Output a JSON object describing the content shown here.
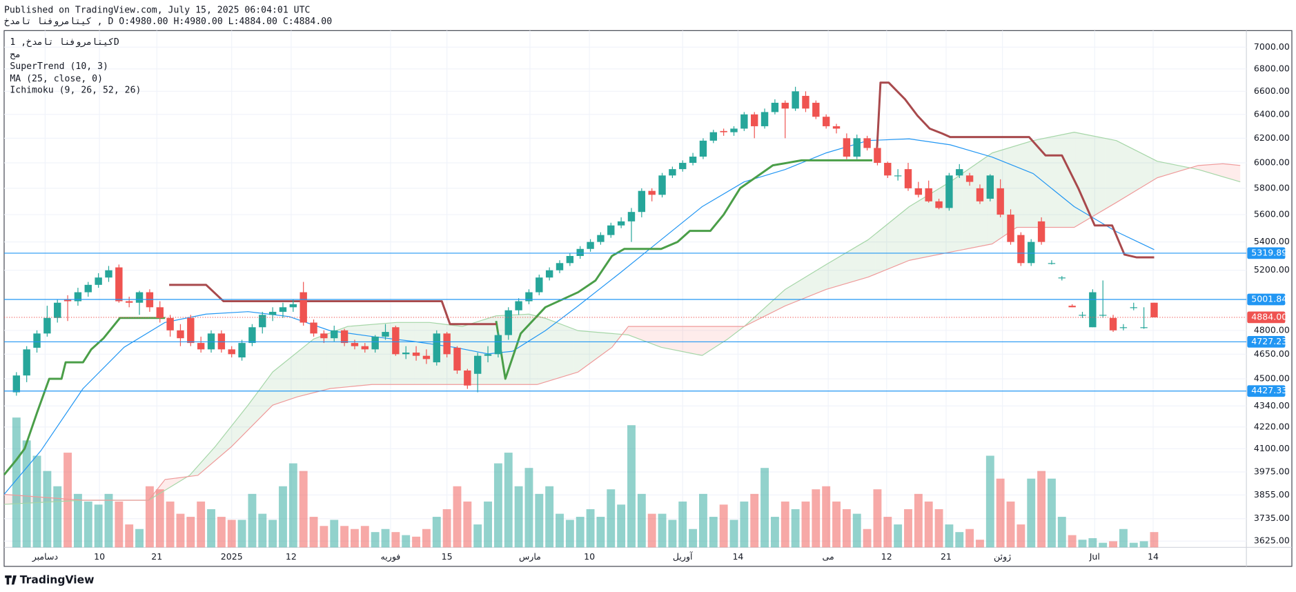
{
  "header": {
    "published": "Published on TradingView.com, July 15, 2025 06:04:01 UTC",
    "symbol_line": "کیتامروفنا تامدخ , D O:4980.00 H:4980.00 L:4884.00 C:4884.00"
  },
  "legend": {
    "symbol": "کیتامروفنا تامدخ, 1D",
    "exchange": "مح"
  },
  "footer": {
    "brand": "TradingView"
  },
  "chart_data": {
    "type": "candlestick",
    "log_scale": true,
    "grid": true,
    "colors": {
      "up": "#26a69a",
      "down": "#ef5350"
    },
    "xlim": [
      -1.2,
      120
    ],
    "ylim": [
      3595,
      7156
    ],
    "xticks": [
      {
        "value": 2.8,
        "label": "دسامبر"
      },
      {
        "value": 8.1,
        "label": "10"
      },
      {
        "value": 13.7,
        "label": "21"
      },
      {
        "value": 21,
        "label": "2025"
      },
      {
        "value": 26.8,
        "label": "12"
      },
      {
        "value": 36.5,
        "label": "فوریه"
      },
      {
        "value": 42,
        "label": "15"
      },
      {
        "value": 50.1,
        "label": "مارس"
      },
      {
        "value": 55.9,
        "label": "10"
      },
      {
        "value": 65,
        "label": "آوریل"
      },
      {
        "value": 70.4,
        "label": "14"
      },
      {
        "value": 79.2,
        "label": "می"
      },
      {
        "value": 84.9,
        "label": "12"
      },
      {
        "value": 90.7,
        "label": "21"
      },
      {
        "value": 96.2,
        "label": "ژوئن"
      },
      {
        "value": 105.2,
        "label": "Jul"
      },
      {
        "value": 110.9,
        "label": "14"
      }
    ],
    "yticks": [
      {
        "value": 3625,
        "label": "3625.00"
      },
      {
        "value": 3735,
        "label": "3735.00"
      },
      {
        "value": 3855,
        "label": "3855.00"
      },
      {
        "value": 3975,
        "label": "3975.00"
      },
      {
        "value": 4100,
        "label": "4100.00"
      },
      {
        "value": 4220,
        "label": "4220.00"
      },
      {
        "value": 4340,
        "label": "4340.00"
      },
      {
        "value": 4500,
        "label": "4500.00"
      },
      {
        "value": 4650,
        "label": "4650.00"
      },
      {
        "value": 4800,
        "label": "4800.00"
      },
      {
        "value": 5200,
        "label": "5200.00"
      },
      {
        "value": 5400,
        "label": "5400.00"
      },
      {
        "value": 5600,
        "label": "5600.00"
      },
      {
        "value": 5800,
        "label": "5800.00"
      },
      {
        "value": 6000,
        "label": "6000.00"
      },
      {
        "value": 6200,
        "label": "6200.00"
      },
      {
        "value": 6400,
        "label": "6400.00"
      },
      {
        "value": 6600,
        "label": "6600.00"
      },
      {
        "value": 6800,
        "label": "6800.00"
      },
      {
        "value": 7000,
        "label": "7000.00"
      }
    ],
    "open": [
      4420,
      4520,
      4690,
      4780,
      4880,
      5000,
      4990,
      5050,
      5100,
      5150,
      5220,
      4990,
      4980,
      5050,
      4950,
      4880,
      4800,
      4880,
      4720,
      4680,
      4780,
      4680,
      4630,
      4720,
      4820,
      4900,
      4920,
      4950,
      5050,
      4850,
      4780,
      4750,
      4800,
      4720,
      4700,
      4680,
      4760,
      4820,
      4650,
      4660,
      4640,
      4600,
      4780,
      4690,
      4550,
      4530,
      4640,
      4650,
      4770,
      4930,
      4990,
      5050,
      5150,
      5200,
      5250,
      5300,
      5350,
      5400,
      5450,
      5520,
      5550,
      5620,
      5780,
      5750,
      5900,
      5950,
      6000,
      6050,
      6180,
      6260,
      6250,
      6280,
      6400,
      6300,
      6420,
      6500,
      6450,
      6560,
      6500,
      6380,
      6300,
      6200,
      6050,
      6200,
      6120,
      6000,
      5900,
      5950,
      5800,
      5800,
      5700,
      5650,
      5900,
      5900,
      5800,
      5720,
      5800,
      5600,
      5450,
      5250,
      5550,
      5250,
      5150,
      4960,
      4900,
      4820,
      4900,
      4880,
      4820,
      4950,
      4820,
      4980
    ],
    "high": [
      4540,
      4700,
      4800,
      4960,
      5000,
      5030,
      5080,
      5120,
      5180,
      5230,
      5240,
      5020,
      5060,
      5070,
      4990,
      4900,
      4840,
      4900,
      4760,
      4800,
      4800,
      4700,
      4740,
      4840,
      4920,
      4950,
      4980,
      5000,
      5120,
      4870,
      4800,
      4830,
      4810,
      4740,
      4720,
      4770,
      4840,
      4830,
      4700,
      4700,
      4680,
      4800,
      4790,
      4700,
      4560,
      4660,
      4700,
      4790,
      4950,
      5010,
      5070,
      5170,
      5220,
      5270,
      5320,
      5370,
      5420,
      5470,
      5540,
      5580,
      5650,
      5800,
      5800,
      5920,
      5970,
      6020,
      6080,
      6200,
      6270,
      6280,
      6300,
      6420,
      6420,
      6450,
      6530,
      6520,
      6640,
      6600,
      6520,
      6400,
      6320,
      6240,
      6230,
      6220,
      6130,
      6010,
      5950,
      6000,
      5850,
      5860,
      5720,
      5920,
      5990,
      5920,
      5830,
      5910,
      5870,
      5640,
      5470,
      5420,
      5580,
      5270,
      5160,
      4970,
      4920,
      5070,
      5130,
      4900,
      4840,
      4980,
      4950,
      4980
    ],
    "low": [
      4400,
      4480,
      4660,
      4760,
      4850,
      4860,
      4960,
      5020,
      5080,
      5120,
      4980,
      4950,
      4900,
      4920,
      4850,
      4760,
      4700,
      4700,
      4660,
      4660,
      4660,
      4630,
      4610,
      4700,
      4780,
      4860,
      4880,
      4920,
      4830,
      4760,
      4720,
      4730,
      4700,
      4680,
      4660,
      4660,
      4740,
      4640,
      4620,
      4610,
      4590,
      4580,
      4630,
      4530,
      4440,
      4420,
      4600,
      4630,
      4740,
      4900,
      4970,
      5030,
      5130,
      5180,
      5230,
      5280,
      5330,
      5380,
      5430,
      5500,
      5400,
      5580,
      5700,
      5730,
      5880,
      5930,
      5980,
      6030,
      6160,
      6220,
      6220,
      6260,
      6200,
      6280,
      6400,
      6200,
      6430,
      6420,
      6360,
      6280,
      6240,
      6030,
      6030,
      6100,
      5980,
      5880,
      5860,
      5780,
      5730,
      5690,
      5640,
      5630,
      5880,
      5820,
      5680,
      5700,
      5580,
      5380,
      5230,
      5230,
      5380,
      5240,
      5130,
      4950,
      4880,
      4820,
      4880,
      4790,
      4800,
      4930,
      4810,
      4884
    ],
    "close": [
      4520,
      4680,
      4780,
      4880,
      4980,
      4990,
      5050,
      5100,
      5150,
      5200,
      4990,
      4980,
      5050,
      4950,
      4880,
      4800,
      4750,
      4720,
      4680,
      4780,
      4680,
      4650,
      4720,
      4820,
      4900,
      4920,
      4950,
      4970,
      4850,
      4780,
      4750,
      4800,
      4720,
      4700,
      4680,
      4760,
      4790,
      4650,
      4660,
      4640,
      4620,
      4780,
      4650,
      4550,
      4460,
      4640,
      4650,
      4770,
      4930,
      4990,
      5050,
      5150,
      5200,
      5250,
      5300,
      5350,
      5400,
      5450,
      5520,
      5550,
      5620,
      5780,
      5750,
      5900,
      5950,
      6000,
      6050,
      6180,
      6250,
      6250,
      6280,
      6400,
      6300,
      6420,
      6500,
      6450,
      6600,
      6450,
      6380,
      6300,
      6280,
      6050,
      6200,
      6120,
      6000,
      5900,
      5900,
      5800,
      5750,
      5700,
      5650,
      5900,
      5950,
      5850,
      5700,
      5900,
      5600,
      5400,
      5250,
      5400,
      5400,
      5250,
      5150,
      4950,
      4900,
      5050,
      4900,
      4800,
      4820,
      4950,
      4820,
      4884
    ],
    "volume": [
      85,
      70,
      60,
      50,
      40,
      62,
      35,
      30,
      28,
      35,
      30,
      15,
      12,
      40,
      38,
      30,
      22,
      20,
      30,
      25,
      20,
      18,
      18,
      35,
      22,
      18,
      40,
      55,
      50,
      20,
      14,
      18,
      14,
      12,
      14,
      10,
      12,
      10,
      8,
      7,
      12,
      20,
      25,
      40,
      30,
      15,
      30,
      55,
      62,
      40,
      52,
      35,
      40,
      22,
      18,
      20,
      25,
      20,
      38,
      28,
      80,
      35,
      22,
      22,
      18,
      30,
      12,
      35,
      20,
      28,
      18,
      30,
      35,
      52,
      20,
      30,
      25,
      30,
      38,
      40,
      30,
      25,
      22,
      12,
      38,
      20,
      15,
      25,
      35,
      30,
      25,
      15,
      10,
      12,
      5,
      60,
      45,
      30,
      15,
      45,
      50,
      45,
      20,
      8,
      5,
      6,
      3,
      4,
      12,
      3,
      4,
      10
    ],
    "supertrend": {
      "name": "SuperTrend (10, 3)",
      "up": {
        "color": "#4a9e48",
        "x": [
          -1.2,
          0,
          0.8,
          2,
          3.2,
          4.4,
          4.8,
          6.5,
          7.3,
          8.5,
          10.1,
          14.5,
          null,
          46.8,
          47.7,
          49.2,
          51.6,
          54.8,
          56.5,
          58.1,
          59.3,
          62.9,
          64.5,
          65.7,
          67.7,
          69,
          70.6,
          73.8,
          76.6,
          83.5
        ],
        "values": [
          3960,
          4040,
          4100,
          4300,
          4500,
          4500,
          4600,
          4600,
          4680,
          4750,
          4880,
          4880,
          null,
          4860,
          4500,
          4780,
          4950,
          5050,
          5130,
          5300,
          5350,
          5350,
          5400,
          5480,
          5480,
          5600,
          5800,
          5980,
          6020,
          6020
        ]
      },
      "down": {
        "color": "#a8494c",
        "x": [
          14.9,
          18.5,
          20.2,
          41.5,
          42.3,
          46.8,
          null,
          83.9,
          84.3,
          85.1,
          86.7,
          87.9,
          89.1,
          90.3,
          91.1,
          98.8,
          100.4,
          102,
          103.6,
          105.2,
          106.9,
          108.1,
          109.3,
          111
        ],
        "values": [
          5100,
          5100,
          4990,
          4990,
          4840,
          4840,
          null,
          6020,
          6677,
          6677,
          6530,
          6390,
          6280,
          6240,
          6210,
          6210,
          6060,
          6060,
          5800,
          5520,
          5520,
          5310,
          5290,
          5290
        ]
      }
    },
    "ma": {
      "name": "MA (25, close, 0)",
      "color": "#2196f3",
      "x": [
        -1.2,
        2.4,
        6.5,
        10.5,
        14.5,
        18.5,
        22.6,
        26.6,
        30.6,
        34.7,
        38.7,
        42.7,
        46,
        48.4,
        51.6,
        54.8,
        58.9,
        62.9,
        66.9,
        71,
        75,
        79,
        83.1,
        87.1,
        91.1,
        95.2,
        99.2,
        103.2,
        107.3,
        111
      ],
      "values": [
        3858,
        4090,
        4442,
        4693,
        4851,
        4905,
        4921,
        4889,
        4798,
        4761,
        4730,
        4693,
        4652,
        4668,
        4798,
        4959,
        5182,
        5416,
        5660,
        5850,
        5947,
        6080,
        6181,
        6195,
        6146,
        6046,
        5915,
        5660,
        5475,
        5345
      ]
    },
    "ichimoku": {
      "name": "Ichimoku (9, 26, 52, 26)",
      "fill_up": "rgba(67,160,71,0.1)",
      "fill_down": "rgba(244,67,54,0.1)",
      "span_a": {
        "color": "#a5d6a7",
        "x": [
          -1.2,
          6.5,
          12.9,
          16.9,
          19.4,
          22.6,
          25,
          29,
          32.3,
          37.1,
          40.3,
          43.5,
          46.8,
          50,
          51.6,
          54.8,
          59.7,
          62.9,
          66.9,
          69.4,
          71,
          75,
          79,
          83.1,
          87.1,
          91.1,
          95.2,
          99.2,
          103.2,
          107.3,
          111.3,
          115.3,
          119.4
        ],
        "values": [
          3807,
          3828,
          3828,
          3957,
          4112,
          4345,
          4541,
          4745,
          4825,
          4851,
          4851,
          4825,
          4894,
          4905,
          4878,
          4798,
          4771,
          4693,
          4642,
          4745,
          4825,
          5069,
          5240,
          5416,
          5660,
          5850,
          6080,
          6181,
          6250,
          6181,
          6013,
          5947,
          5850
        ]
      },
      "span_b": {
        "color": "#ef9a9a",
        "x": [
          -1.2,
          6.5,
          12.9,
          14.5,
          17.7,
          21,
          25,
          27.4,
          30.6,
          34.7,
          46.8,
          50.8,
          54.8,
          58.1,
          59.7,
          62.9,
          66.9,
          71,
          75,
          79,
          83.1,
          87.1,
          91.1,
          95.2,
          97.6,
          103.2,
          107.3,
          111.3,
          115.3,
          117.7,
          119.4
        ],
        "values": [
          3858,
          3828,
          3828,
          3935,
          3957,
          4112,
          4345,
          4393,
          4442,
          4466,
          4466,
          4466,
          4541,
          4693,
          4825,
          4825,
          4825,
          4825,
          4959,
          5069,
          5153,
          5269,
          5327,
          5386,
          5506,
          5506,
          5691,
          5882,
          5979,
          5993,
          5979
        ]
      }
    },
    "price_lines": [
      5319.89,
      5001.84,
      4727.23,
      4427.33
    ],
    "price_line_color": "#2196f3",
    "last_price": {
      "value": 4884,
      "label": "4884.00"
    },
    "last_price_color": "#ef5350"
  }
}
